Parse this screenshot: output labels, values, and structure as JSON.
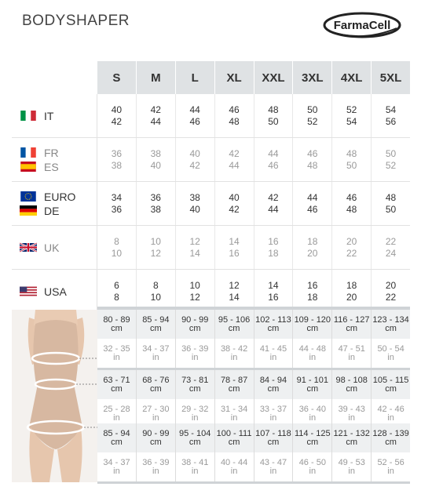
{
  "header": {
    "title": "BODYSHAPER",
    "logo_text_1": "Farma",
    "logo_text_2": "Cell"
  },
  "sizes": [
    "S",
    "M",
    "L",
    "XL",
    "XXL",
    "3XL",
    "4XL",
    "5XL"
  ],
  "countries": [
    {
      "names": [
        "IT"
      ],
      "flags": [
        "it"
      ],
      "style": "bold",
      "values": [
        [
          "40",
          "42"
        ],
        [
          "42",
          "44"
        ],
        [
          "44",
          "46"
        ],
        [
          "46",
          "48"
        ],
        [
          "48",
          "50"
        ],
        [
          "50",
          "52"
        ],
        [
          "52",
          "54"
        ],
        [
          "54",
          "56"
        ]
      ]
    },
    {
      "names": [
        "FR",
        "ES"
      ],
      "flags": [
        "fr",
        "es"
      ],
      "style": "light",
      "values": [
        [
          "36",
          "38"
        ],
        [
          "38",
          "40"
        ],
        [
          "40",
          "42"
        ],
        [
          "42",
          "44"
        ],
        [
          "44",
          "46"
        ],
        [
          "46",
          "48"
        ],
        [
          "48",
          "50"
        ],
        [
          "50",
          "52"
        ]
      ]
    },
    {
      "names": [
        "EURO",
        "DE"
      ],
      "flags": [
        "eu",
        "de"
      ],
      "style": "bold",
      "values": [
        [
          "34",
          "36"
        ],
        [
          "36",
          "38"
        ],
        [
          "38",
          "40"
        ],
        [
          "40",
          "42"
        ],
        [
          "42",
          "44"
        ],
        [
          "44",
          "46"
        ],
        [
          "46",
          "48"
        ],
        [
          "48",
          "50"
        ]
      ]
    },
    {
      "names": [
        "UK"
      ],
      "flags": [
        "uk"
      ],
      "style": "light",
      "values": [
        [
          "8",
          "10"
        ],
        [
          "10",
          "12"
        ],
        [
          "12",
          "14"
        ],
        [
          "14",
          "16"
        ],
        [
          "16",
          "18"
        ],
        [
          "18",
          "20"
        ],
        [
          "20",
          "22"
        ],
        [
          "22",
          "24"
        ]
      ]
    },
    {
      "names": [
        "USA"
      ],
      "flags": [
        "us"
      ],
      "style": "bold",
      "values": [
        [
          "6",
          "8"
        ],
        [
          "8",
          "10"
        ],
        [
          "10",
          "12"
        ],
        [
          "12",
          "14"
        ],
        [
          "14",
          "16"
        ],
        [
          "16",
          "18"
        ],
        [
          "18",
          "20"
        ],
        [
          "20",
          "22"
        ]
      ]
    }
  ],
  "measurements": [
    {
      "cm": [
        "80 - 89",
        "85 - 94",
        "90 - 99",
        "95 - 106",
        "102 - 113",
        "109 - 120",
        "116 - 127",
        "123 - 134"
      ],
      "in": [
        "32 - 35",
        "34 - 37",
        "36 - 39",
        "38 - 42",
        "41 - 45",
        "44 - 48",
        "47 - 51",
        "50 - 54"
      ]
    },
    {
      "cm": [
        "63 - 71",
        "68 - 76",
        "73 - 81",
        "78 - 87",
        "84 - 94",
        "91 - 101",
        "98 - 108",
        "105 - 115"
      ],
      "in": [
        "25 - 28",
        "27 - 30",
        "29 - 32",
        "31 - 34",
        "33 - 37",
        "36 - 40",
        "39 - 43",
        "42 - 46"
      ]
    },
    {
      "cm": [
        "85 - 94",
        "90 - 99",
        "95 - 104",
        "100 - 111",
        "107 - 118",
        "114 - 125",
        "121 - 132",
        "128 - 139"
      ],
      "in": [
        "34 - 37",
        "36 - 39",
        "38 - 41",
        "40 - 44",
        "43 - 47",
        "46 - 50",
        "49 - 53",
        "52 - 56"
      ]
    }
  ],
  "units": {
    "cm": "cm",
    "in": "in"
  }
}
